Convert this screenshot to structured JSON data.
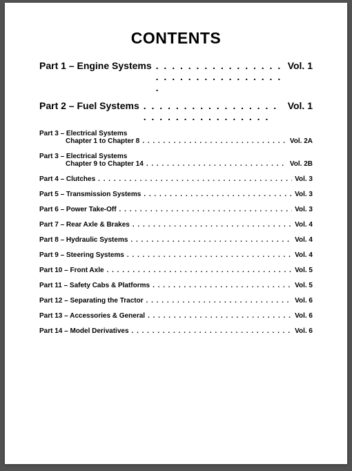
{
  "title": "CONTENTS",
  "dots_major": ". . . . . . . . . . . . . . . . . . . . . . . . . . . . . . . . .",
  "dots_minor": ". . . . . . . . . . . . . . . . . . . . . . . . . . . . . . . . . . . . . . . . . . . . . . . . . . . . . . . . . . . . . . . . . . . . . . . .",
  "major": [
    {
      "label": "Part 1 – Engine Systems",
      "vol": "Vol. 1"
    },
    {
      "label": "Part 2 – Fuel Systems",
      "vol": "Vol. 1"
    }
  ],
  "minor": [
    {
      "two_line": true,
      "line1": "Part 3 – Electrical Systems",
      "line2": "Chapter 1 to Chapter 8",
      "vol": "Vol. 2A"
    },
    {
      "two_line": true,
      "line1": "Part 3 – Electrical Systems",
      "line2": "Chapter 9 to Chapter 14",
      "vol": "Vol. 2B"
    },
    {
      "two_line": false,
      "line1": "Part 4 – Clutches",
      "vol": "Vol. 3"
    },
    {
      "two_line": false,
      "line1": "Part 5 – Transmission Systems",
      "vol": "Vol. 3"
    },
    {
      "two_line": false,
      "line1": "Part 6 – Power Take-Off",
      "vol": "Vol. 3"
    },
    {
      "two_line": false,
      "line1": "Part 7 – Rear Axle & Brakes",
      "vol": "Vol. 4"
    },
    {
      "two_line": false,
      "line1": "Part 8 – Hydraulic Systems",
      "vol": "Vol. 4"
    },
    {
      "two_line": false,
      "line1": "Part 9 – Steering Systems",
      "vol": "Vol. 4"
    },
    {
      "two_line": false,
      "line1": "Part 10 – Front Axle",
      "vol": "Vol. 5"
    },
    {
      "two_line": false,
      "line1": "Part 11 – Safety Cabs & Platforms",
      "vol": "Vol. 5"
    },
    {
      "two_line": false,
      "line1": "Part 12 – Separating the Tractor",
      "vol": "Vol. 6"
    },
    {
      "two_line": false,
      "line1": "Part 13 – Accessories & General",
      "vol": "Vol. 6"
    },
    {
      "two_line": false,
      "line1": "Part 14 – Model Derivatives",
      "vol": "Vol. 6"
    }
  ]
}
